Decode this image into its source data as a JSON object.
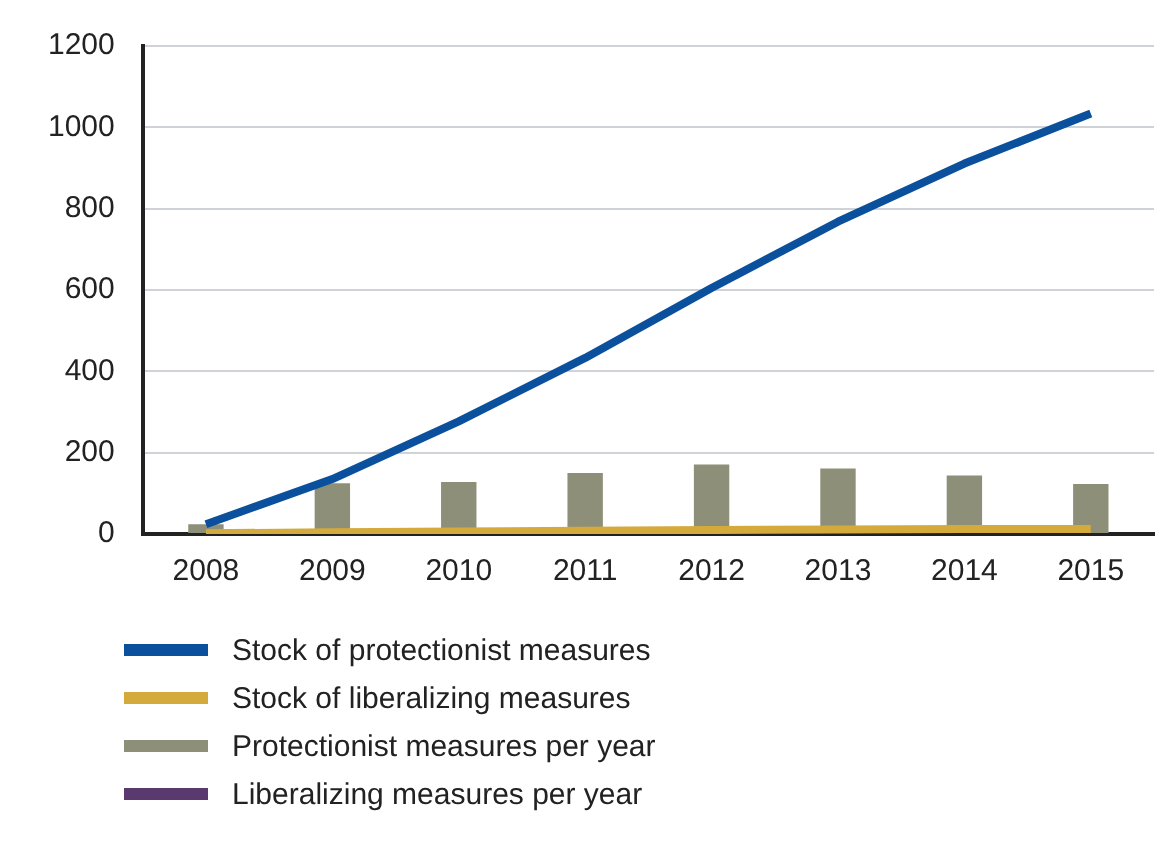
{
  "chart_data": {
    "type": "bar",
    "categories": [
      "2008",
      "2009",
      "2010",
      "2011",
      "2012",
      "2013",
      "2014",
      "2015"
    ],
    "series": [
      {
        "name": "Stock of protectionist measures",
        "type": "line",
        "color": "#0a509c",
        "values": [
          24,
          135,
          277,
          433,
          605,
          768,
          911,
          1034
        ]
      },
      {
        "name": "Stock of liberalizing measures",
        "type": "line",
        "color": "#d4aa3c",
        "values": [
          2,
          4,
          6,
          8,
          10,
          11,
          12,
          12
        ]
      },
      {
        "name": "Protectionist measures per year",
        "color": "#8e8f78",
        "values": [
          24,
          125,
          128,
          150,
          171,
          161,
          144,
          123
        ]
      },
      {
        "name": "Liberalizing measures per year",
        "color": "#5a3a6e",
        "values": [
          null,
          null,
          null,
          null,
          null,
          null,
          null,
          null
        ]
      }
    ],
    "ylim": [
      0,
      1200
    ],
    "yticks": [
      0,
      200,
      400,
      600,
      800,
      1000,
      1200
    ],
    "grid": "y",
    "legend": "bottom"
  }
}
